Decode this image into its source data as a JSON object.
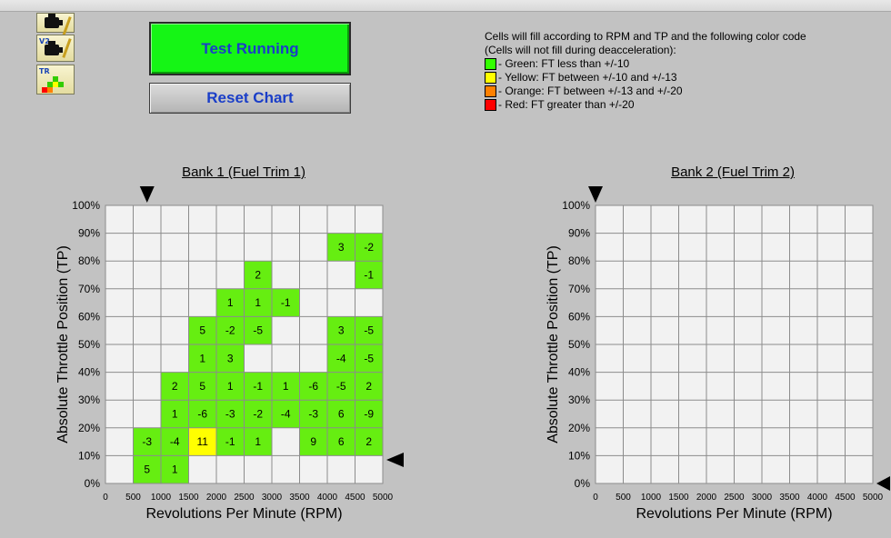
{
  "toolbar": {
    "icons": [
      {
        "name": "engine-wrench-icon",
        "label": ""
      },
      {
        "name": "engine-v2-icon",
        "label": "V2"
      },
      {
        "name": "trim-chart-icon",
        "label": "TR"
      }
    ],
    "test_running_label": "Test Running",
    "reset_chart_label": "Reset Chart"
  },
  "legend": {
    "line1": "Cells will fill according to RPM and TP and the following color code",
    "line2": "(Cells will not fill during deacceleration):",
    "items": [
      {
        "text": "- Green:  FT less than +/-10",
        "color": "#33ff00"
      },
      {
        "text": "- Yellow:  FT between +/-10 and +/-13",
        "color": "#ffff00"
      },
      {
        "text": "- Orange: FT between +/-13 and +/-20",
        "color": "#ff8000"
      },
      {
        "text": "- Red:      FT greater than +/-20",
        "color": "#ff0000"
      }
    ]
  },
  "colors": {
    "green": "#66ee11",
    "yellow": "#ffff00",
    "orange": "#ff8000",
    "red": "#ff0000",
    "empty": "#f2f2f2"
  },
  "chart_data": [
    {
      "type": "heatmap",
      "title": "Bank 1 (Fuel Trim 1)",
      "xlabel": "Revolutions Per Minute (RPM)",
      "ylabel": "Absolute Throttle Position (TP)",
      "xlim": [
        0,
        5000
      ],
      "ylim": [
        0,
        100
      ],
      "x_ticks": [
        "0",
        "500",
        "1000",
        "1500",
        "2000",
        "2500",
        "3000",
        "3500",
        "4000",
        "4500",
        "5000"
      ],
      "y_ticks": [
        "0%",
        "10%",
        "20%",
        "30%",
        "40%",
        "50%",
        "60%",
        "70%",
        "80%",
        "90%",
        "100%"
      ],
      "rpm_marker": 750,
      "tp_marker": 8.5,
      "cells": [
        {
          "rpm": 500,
          "tp": 0,
          "value": "5",
          "color": "green"
        },
        {
          "rpm": 1000,
          "tp": 0,
          "value": "1",
          "color": "green"
        },
        {
          "rpm": 500,
          "tp": 10,
          "value": "-3",
          "color": "green"
        },
        {
          "rpm": 1000,
          "tp": 10,
          "value": "-4",
          "color": "green"
        },
        {
          "rpm": 1500,
          "tp": 10,
          "value": "11",
          "color": "yellow"
        },
        {
          "rpm": 2000,
          "tp": 10,
          "value": "-1",
          "color": "green"
        },
        {
          "rpm": 2500,
          "tp": 10,
          "value": "1",
          "color": "green"
        },
        {
          "rpm": 3500,
          "tp": 10,
          "value": "9",
          "color": "green"
        },
        {
          "rpm": 4000,
          "tp": 10,
          "value": "6",
          "color": "green"
        },
        {
          "rpm": 4500,
          "tp": 10,
          "value": "2",
          "color": "green"
        },
        {
          "rpm": 1000,
          "tp": 20,
          "value": "1",
          "color": "green"
        },
        {
          "rpm": 1500,
          "tp": 20,
          "value": "-6",
          "color": "green"
        },
        {
          "rpm": 2000,
          "tp": 20,
          "value": "-3",
          "color": "green"
        },
        {
          "rpm": 2500,
          "tp": 20,
          "value": "-2",
          "color": "green"
        },
        {
          "rpm": 3000,
          "tp": 20,
          "value": "-4",
          "color": "green"
        },
        {
          "rpm": 3500,
          "tp": 20,
          "value": "-3",
          "color": "green"
        },
        {
          "rpm": 4000,
          "tp": 20,
          "value": "6",
          "color": "green"
        },
        {
          "rpm": 4500,
          "tp": 20,
          "value": "-9",
          "color": "green"
        },
        {
          "rpm": 1000,
          "tp": 30,
          "value": "2",
          "color": "green"
        },
        {
          "rpm": 1500,
          "tp": 30,
          "value": "5",
          "color": "green"
        },
        {
          "rpm": 2000,
          "tp": 30,
          "value": "1",
          "color": "green"
        },
        {
          "rpm": 2500,
          "tp": 30,
          "value": "-1",
          "color": "green"
        },
        {
          "rpm": 3000,
          "tp": 30,
          "value": "1",
          "color": "green"
        },
        {
          "rpm": 3500,
          "tp": 30,
          "value": "-6",
          "color": "green"
        },
        {
          "rpm": 4000,
          "tp": 30,
          "value": "-5",
          "color": "green"
        },
        {
          "rpm": 4500,
          "tp": 30,
          "value": "2",
          "color": "green"
        },
        {
          "rpm": 1500,
          "tp": 40,
          "value": "1",
          "color": "green"
        },
        {
          "rpm": 2000,
          "tp": 40,
          "value": "3",
          "color": "green"
        },
        {
          "rpm": 4000,
          "tp": 40,
          "value": "-4",
          "color": "green"
        },
        {
          "rpm": 4500,
          "tp": 40,
          "value": "-5",
          "color": "green"
        },
        {
          "rpm": 1500,
          "tp": 50,
          "value": "5",
          "color": "green"
        },
        {
          "rpm": 2000,
          "tp": 50,
          "value": "-2",
          "color": "green"
        },
        {
          "rpm": 2500,
          "tp": 50,
          "value": "-5",
          "color": "green"
        },
        {
          "rpm": 4000,
          "tp": 50,
          "value": "3",
          "color": "green"
        },
        {
          "rpm": 4500,
          "tp": 50,
          "value": "-5",
          "color": "green"
        },
        {
          "rpm": 2000,
          "tp": 60,
          "value": "1",
          "color": "green"
        },
        {
          "rpm": 2500,
          "tp": 60,
          "value": "1",
          "color": "green"
        },
        {
          "rpm": 3000,
          "tp": 60,
          "value": "-1",
          "color": "green"
        },
        {
          "rpm": 2500,
          "tp": 70,
          "value": "2",
          "color": "green"
        },
        {
          "rpm": 4500,
          "tp": 70,
          "value": "-1",
          "color": "green"
        },
        {
          "rpm": 4000,
          "tp": 80,
          "value": "3",
          "color": "green"
        },
        {
          "rpm": 4500,
          "tp": 80,
          "value": "-2",
          "color": "green"
        }
      ]
    },
    {
      "type": "heatmap",
      "title": "Bank 2 (Fuel Trim 2)",
      "xlabel": "Revolutions Per Minute (RPM)",
      "ylabel": "Absolute Throttle Position (TP)",
      "xlim": [
        0,
        5000
      ],
      "ylim": [
        0,
        100
      ],
      "x_ticks": [
        "0",
        "500",
        "1000",
        "1500",
        "2000",
        "2500",
        "3000",
        "3500",
        "4000",
        "4500",
        "5000"
      ],
      "y_ticks": [
        "0%",
        "10%",
        "20%",
        "30%",
        "40%",
        "50%",
        "60%",
        "70%",
        "80%",
        "90%",
        "100%"
      ],
      "rpm_marker": 0,
      "tp_marker": 0,
      "cells": []
    }
  ]
}
